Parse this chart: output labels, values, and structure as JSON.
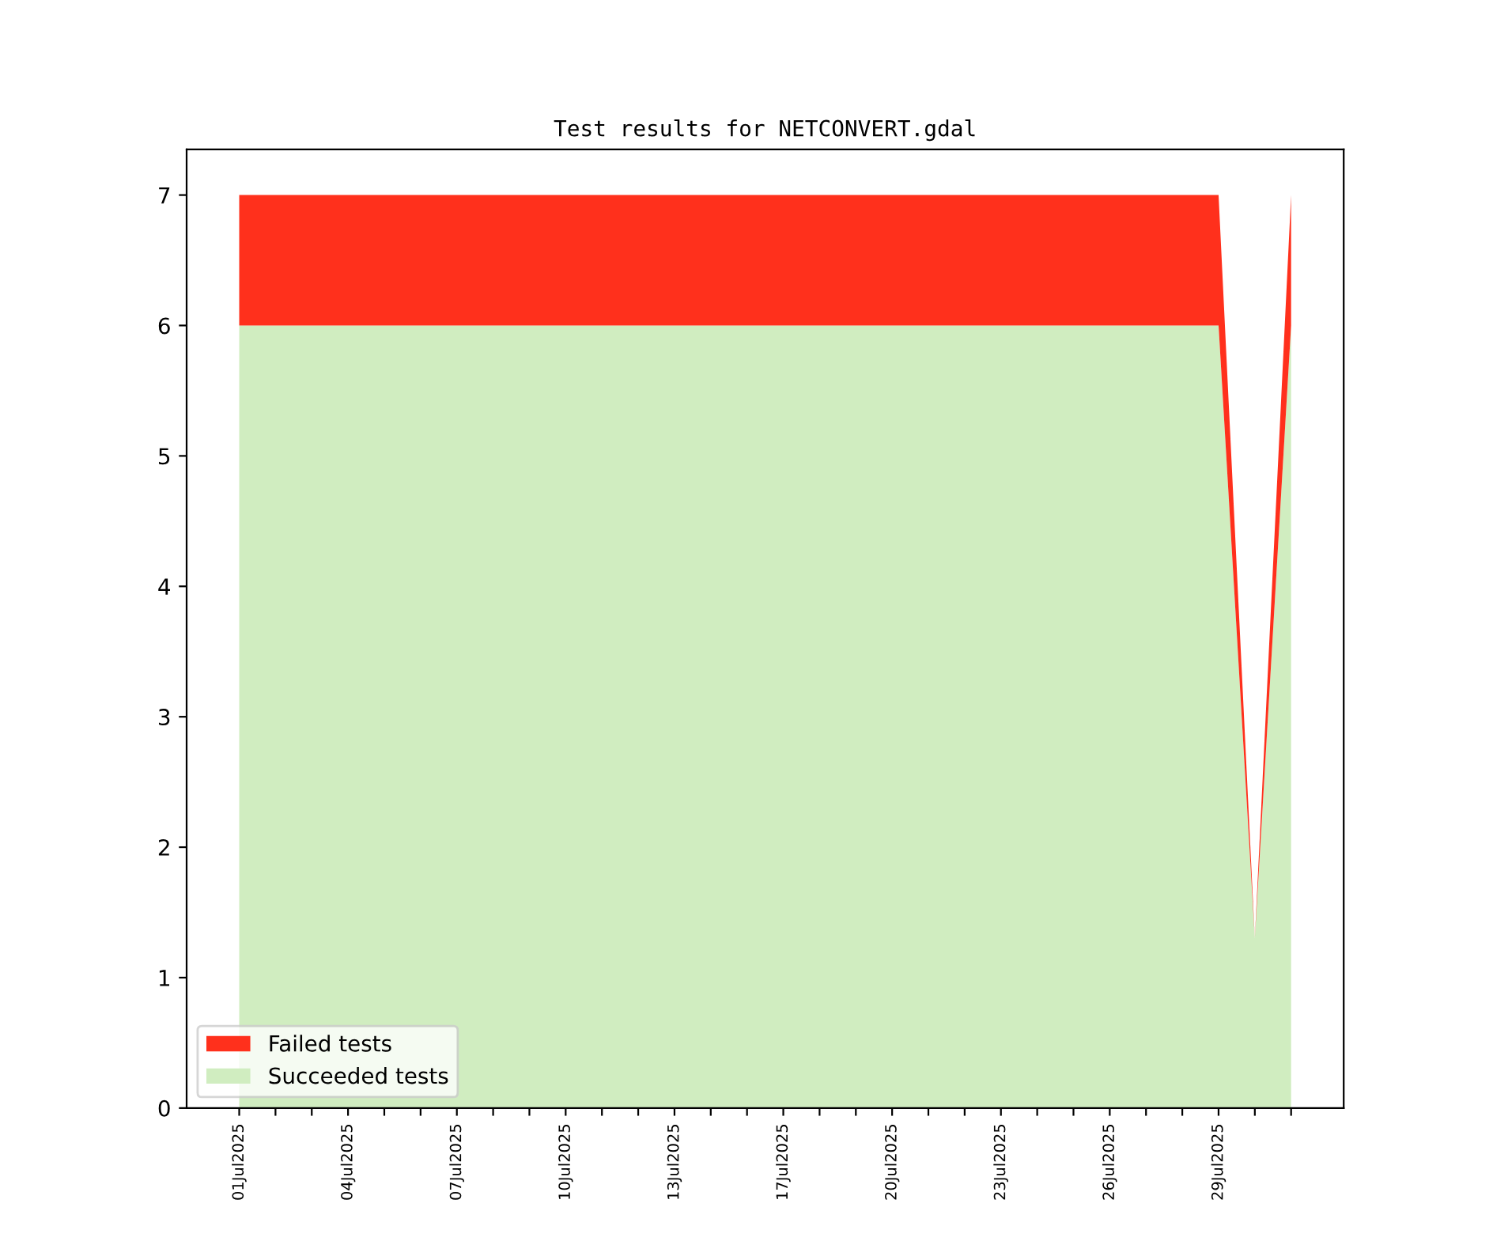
{
  "chart_data": {
    "type": "area",
    "title": "Test results for NETCONVERT.gdal",
    "stacked": true,
    "categories": [
      "01Jul2025",
      null,
      null,
      "04Jul2025",
      null,
      null,
      "07Jul2025",
      null,
      null,
      "10Jul2025",
      null,
      null,
      "13Jul2025",
      null,
      null,
      "17Jul2025",
      null,
      null,
      "20Jul2025",
      null,
      null,
      "23Jul2025",
      null,
      null,
      "26Jul2025",
      null,
      null,
      "29Jul2025",
      null,
      null
    ],
    "series": [
      {
        "name": "Succeeded tests",
        "color": "#d0edc0",
        "values": [
          6,
          6,
          6,
          6,
          6,
          6,
          6,
          6,
          6,
          6,
          6,
          6,
          6,
          6,
          6,
          6,
          6,
          6,
          6,
          6,
          6,
          6,
          6,
          6,
          6,
          6,
          6,
          6,
          1.3,
          6
        ]
      },
      {
        "name": "Failed tests",
        "color": "#ff301c",
        "values": [
          1,
          1,
          1,
          1,
          1,
          1,
          1,
          1,
          1,
          1,
          1,
          1,
          1,
          1,
          1,
          1,
          1,
          1,
          1,
          1,
          1,
          1,
          1,
          1,
          1,
          1,
          1,
          1,
          0,
          1
        ]
      }
    ],
    "ylim": [
      0,
      7.35
    ],
    "yticks": [
      0,
      1,
      2,
      3,
      4,
      5,
      6,
      7
    ],
    "legend": "bottom left"
  }
}
